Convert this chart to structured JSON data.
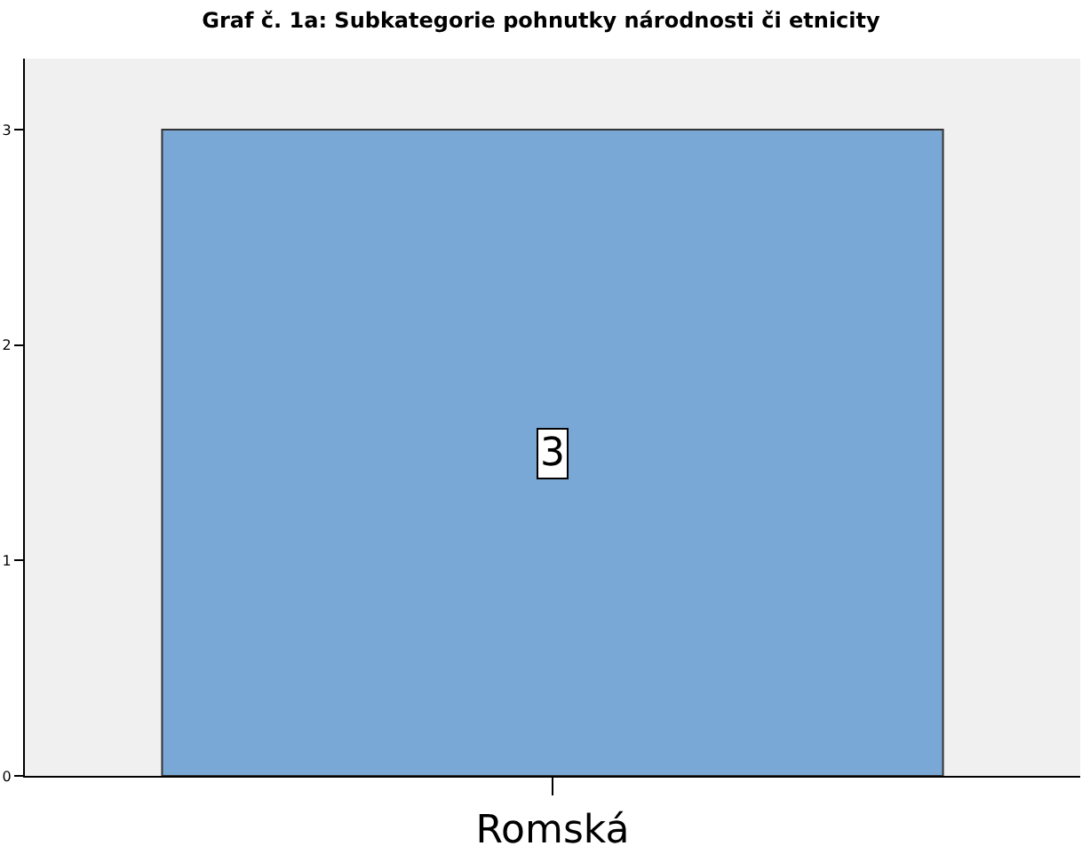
{
  "chart_data": {
    "type": "bar",
    "title": "Graf č. 1a: Subkategorie pohnutky národnosti či etnicity",
    "categories": [
      "Romská"
    ],
    "series": [
      {
        "color": "#79a8d6",
        "values": [
          3
        ]
      }
    ],
    "ylim": [
      0,
      3.33
    ],
    "yticks": [
      0,
      1,
      2,
      3
    ],
    "grid": false,
    "legend": false,
    "data_labels": true
  }
}
